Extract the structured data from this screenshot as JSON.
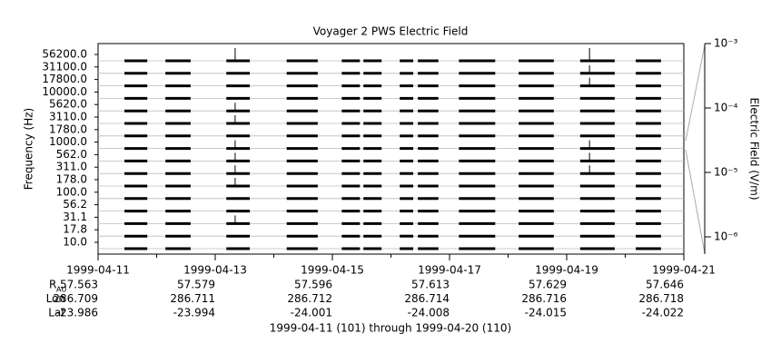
{
  "chart_data": {
    "type": "channel-strip",
    "title": "Voyager 2 PWS Electric Field",
    "y_label": "Frequency (Hz)",
    "y2_label": "Electric Field (V/m)",
    "categories": [
      "56200.0",
      "31100.0",
      "17800.0",
      "10000.0",
      "5620.0",
      "3110.0",
      "1780.0",
      "1000.0",
      "562.0",
      "311.0",
      "178.0",
      "100.0",
      "56.2",
      "31.1",
      "17.8",
      "10.0"
    ],
    "xlim": [
      101,
      111
    ],
    "xticks": [
      {
        "value": 101,
        "label": "1999-04-11"
      },
      {
        "value": 103,
        "label": "1999-04-13"
      },
      {
        "value": 105,
        "label": "1999-04-15"
      },
      {
        "value": 107,
        "label": "1999-04-17"
      },
      {
        "value": 109,
        "label": "1999-04-19"
      },
      {
        "value": 111,
        "label": "1999-04-21"
      }
    ],
    "segments": [
      [
        101.45,
        101.84
      ],
      [
        102.15,
        102.58
      ],
      [
        103.19,
        103.59
      ],
      [
        104.22,
        104.75
      ],
      [
        105.16,
        105.47
      ],
      [
        105.53,
        105.84
      ],
      [
        106.15,
        106.38
      ],
      [
        106.46,
        106.81
      ],
      [
        107.16,
        107.78
      ],
      [
        108.18,
        108.78
      ],
      [
        109.23,
        109.82
      ],
      [
        110.18,
        110.61
      ]
    ],
    "spikes": [
      {
        "x": 103.34,
        "channels": [
          0,
          4,
          5,
          7,
          8,
          9,
          10,
          13
        ]
      },
      {
        "x": 109.39,
        "channels": [
          0,
          1,
          2,
          7,
          8,
          9
        ]
      }
    ],
    "color": "#000000",
    "y2scale": "log",
    "y2lim": [
      5.4e-07,
      0.001
    ],
    "y2ticks": [
      {
        "value": 0.001,
        "label": "10⁻³"
      },
      {
        "value": 0.0001,
        "label": "10⁻⁴"
      },
      {
        "value": 1e-05,
        "label": "10⁻⁵"
      },
      {
        "value": 1e-06,
        "label": "10⁻⁶"
      }
    ],
    "ephemeris": [
      {
        "label": "R",
        "sub": "AU",
        "values": [
          57.563,
          57.579,
          57.596,
          57.613,
          57.629,
          57.646
        ]
      },
      {
        "label": "Lon",
        "values": [
          286.709,
          286.711,
          286.712,
          286.714,
          286.716,
          286.718
        ]
      },
      {
        "label": "Lat",
        "values": [
          -23.986,
          -23.994,
          -24.001,
          -24.008,
          -24.015,
          -24.022
        ]
      }
    ],
    "footer": "1999-04-11 (101) through 1999-04-20 (110)"
  }
}
